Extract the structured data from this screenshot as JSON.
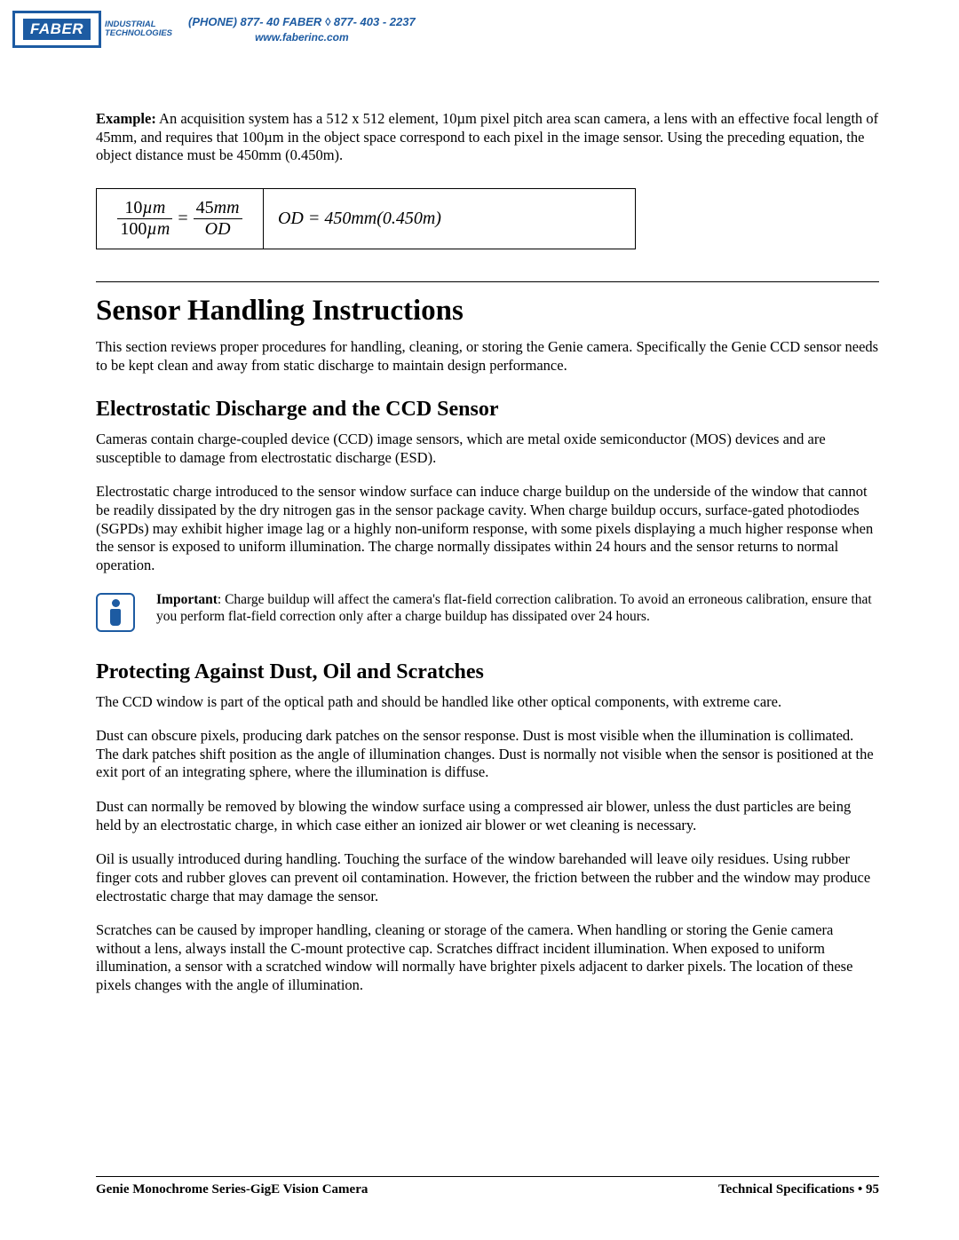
{
  "header": {
    "logo_name": "FABER",
    "logo_sub_line1": "INDUSTRIAL",
    "logo_sub_line2": "TECHNOLOGIES",
    "phone_line": "(PHONE) 877- 40 FABER ◊ 877- 403 - 2237",
    "url": "www.faberinc.com"
  },
  "example": {
    "label": "Example:",
    "text": " An acquisition system has a 512 x 512 element, 10µm pixel pitch area scan camera, a lens with an effective focal length of 45mm, and requires that 100µm in the object space correspond to each pixel in the image sensor. Using the preceding equation, the object distance must be 450mm (0.450m)."
  },
  "equation": {
    "left_num_a": "10",
    "left_num_a_unit": "µm",
    "left_den_a": "100",
    "left_den_a_unit": "µm",
    "left_num_b": "45",
    "left_num_b_unit": "mm",
    "left_den_b": "OD",
    "right": "OD = 450mm(0.450m)"
  },
  "section_title": "Sensor Handling Instructions",
  "section_intro": "This section reviews proper procedures for handling, cleaning, or storing the Genie camera. Specifically the Genie CCD sensor needs to be kept clean and away from static discharge to maintain design performance.",
  "sub1_title": "Electrostatic Discharge and the CCD Sensor",
  "sub1_p1": "Cameras contain charge-coupled device (CCD) image sensors, which are metal oxide semiconductor (MOS) devices and are susceptible to damage from electrostatic discharge (ESD).",
  "sub1_p2": "Electrostatic charge introduced to the sensor window surface can induce charge buildup on the underside of the window that cannot be readily dissipated by the dry nitrogen gas in the sensor package cavity. When charge buildup occurs, surface-gated photodiodes (SGPDs) may exhibit higher image lag or a highly non-uniform response, with some pixels displaying a much higher response when the sensor is exposed to uniform illumination. The charge normally dissipates within 24 hours and the sensor returns to normal operation.",
  "note": {
    "label": "Important",
    "text": ": Charge buildup will affect the camera's flat-field correction calibration. To avoid an erroneous calibration, ensure that you perform flat-field correction only after a charge buildup has dissipated over 24 hours."
  },
  "sub2_title": "Protecting Against Dust, Oil and Scratches",
  "sub2_p1": "The CCD window is part of the optical path and should be handled like other optical components, with extreme care.",
  "sub2_p2": "Dust can obscure pixels, producing dark patches on the sensor response. Dust is most visible when the illumination is collimated. The dark patches shift position as the angle of illumination changes. Dust is normally not visible when the sensor is positioned at the exit port of an integrating sphere, where the illumination is diffuse.",
  "sub2_p3": "Dust can normally be removed by blowing the window surface using a compressed air blower, unless the dust particles are being held by an electrostatic charge, in which case either an ionized air blower or wet cleaning is necessary.",
  "sub2_p4": "Oil is usually introduced during handling. Touching the surface of the window barehanded will leave oily residues. Using rubber finger cots and rubber gloves can prevent oil contamination. However, the friction between the rubber and the window may produce electrostatic charge that may damage the sensor.",
  "sub2_p5": "Scratches can be caused by improper handling, cleaning or storage of the camera. When handling or storing the Genie camera without a lens, always install the C-mount protective cap. Scratches diffract incident illumination. When exposed to uniform illumination, a sensor with a scratched window will normally have brighter pixels adjacent to darker pixels. The location of these pixels changes with the angle of illumination.",
  "footer": {
    "left": "Genie Monochrome Series-GigE Vision Camera",
    "right_label": "Technical Specifications",
    "right_sep": " • ",
    "right_page": "95"
  },
  "colors": {
    "brand": "#1d5ba2",
    "text": "#000000",
    "background": "#ffffff"
  },
  "typography": {
    "body_family": "Times New Roman",
    "body_size_pt": 12,
    "h1_size_pt": 25,
    "h2_size_pt": 18,
    "note_size_pt": 11.5
  }
}
